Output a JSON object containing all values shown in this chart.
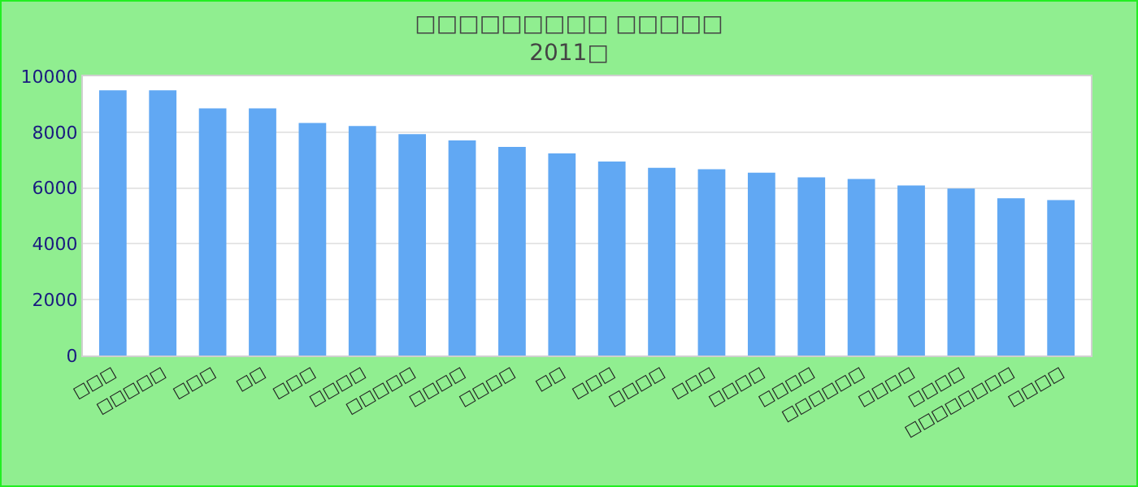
{
  "chart_data": {
    "type": "bar",
    "title": "□□□□□□□□□ □□□□□",
    "subtitle": "2011□",
    "categories": [
      "□□□",
      "□□□□□",
      "□□□",
      "□□",
      "□□□",
      "□□□□",
      "□□□□□",
      "□□□□",
      "□□□□",
      "□□",
      "□□□",
      "□□□□",
      "□□□",
      "□□□□",
      "□□□□",
      "□□□□□□",
      "□□□□",
      "□□□□",
      "□□□□□□□□",
      "□□□□"
    ],
    "values": [
      9500,
      9500,
      8850,
      8850,
      8330,
      8220,
      7930,
      7700,
      7470,
      7240,
      6950,
      6720,
      6670,
      6550,
      6380,
      6320,
      6090,
      5980,
      5630,
      5570
    ],
    "color": "#61a8f3",
    "ylim": [
      0,
      10000
    ],
    "yticks": [
      0,
      2000,
      4000,
      6000,
      8000,
      10000
    ],
    "grid": "y"
  }
}
